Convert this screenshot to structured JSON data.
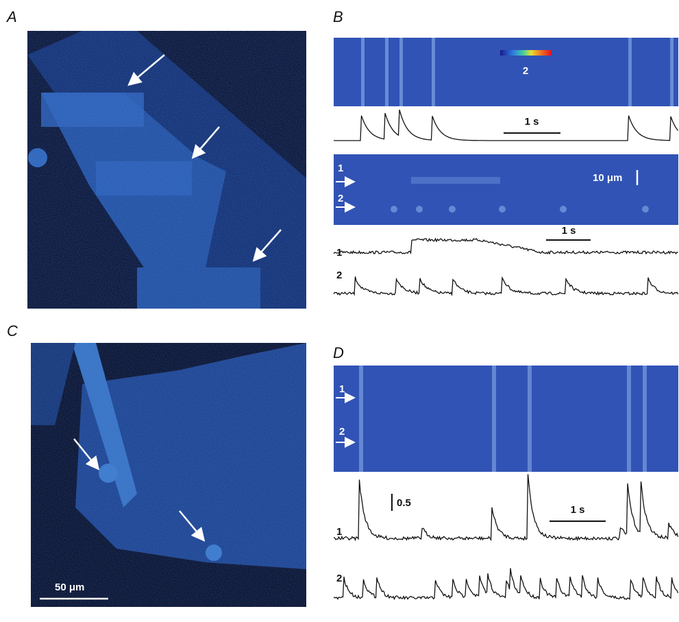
{
  "figure": {
    "panels": [
      {
        "label": "A"
      },
      {
        "label": "B",
        "colorbar_label": "2",
        "time_scale": "1 s",
        "space_scale": "10 μm",
        "line_labels": [
          "1",
          "2"
        ],
        "trace_time_scale": "1 s",
        "trace_labels": [
          "1",
          "2"
        ]
      },
      {
        "label": "C",
        "scale": "50 μm"
      },
      {
        "label": "D",
        "line_labels": [
          "1",
          "2"
        ],
        "amplitude_scale": "0.5",
        "time_scale": "1 s",
        "trace_labels": [
          "1",
          "2"
        ]
      }
    ]
  }
}
